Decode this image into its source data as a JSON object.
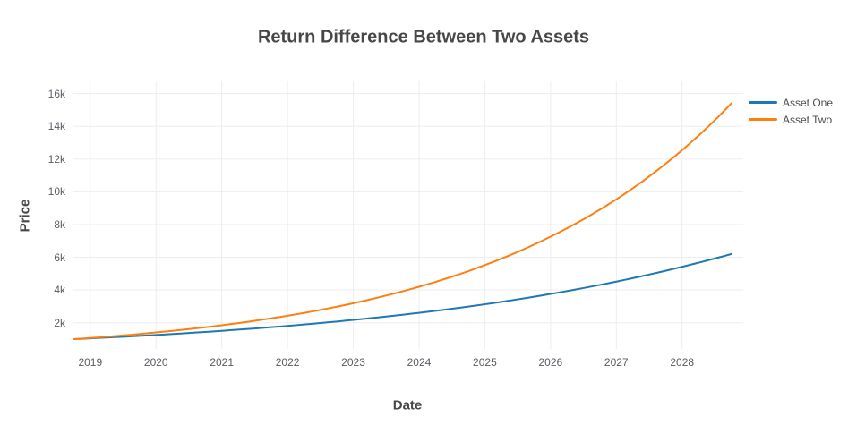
{
  "title": "Return Difference Between Two Assets",
  "colors": {
    "background": "#ffffff",
    "grid": "#ededed",
    "title_text": "#474747",
    "tick_text": "#595c61",
    "asset_one": "#1f77b4",
    "asset_two": "#ff7f0e"
  },
  "chart_data": {
    "type": "line",
    "title": "Return Difference Between Two Assets",
    "xlabel": "Date",
    "ylabel": "Price",
    "grid": true,
    "legend_position": "right-top",
    "xlim": [
      2018.73,
      2028.93
    ],
    "ylim": [
      400,
      16800
    ],
    "x_ticks": [
      2019,
      2020,
      2021,
      2022,
      2023,
      2024,
      2025,
      2026,
      2027,
      2028
    ],
    "y_ticks": [
      {
        "value": 2000,
        "label": "2k"
      },
      {
        "value": 4000,
        "label": "4k"
      },
      {
        "value": 6000,
        "label": "6k"
      },
      {
        "value": 8000,
        "label": "8k"
      },
      {
        "value": 10000,
        "label": "10k"
      },
      {
        "value": 12000,
        "label": "12k"
      },
      {
        "value": 14000,
        "label": "14k"
      },
      {
        "value": 16000,
        "label": "16k"
      }
    ],
    "x": [
      2018.75,
      2019,
      2020,
      2021,
      2022,
      2023,
      2024,
      2025,
      2026,
      2027,
      2028,
      2028.75
    ],
    "series": [
      {
        "name": "Asset One",
        "color": "#1f77b4",
        "values": [
          1000,
          1050,
          1255,
          1510,
          1810,
          2175,
          2610,
          3130,
          3760,
          4515,
          5420,
          6200
        ]
      },
      {
        "name": "Asset Two",
        "color": "#ff7f0e",
        "values": [
          1000,
          1070,
          1410,
          1850,
          2430,
          3195,
          4200,
          5520,
          7260,
          9540,
          12545,
          15400
        ]
      }
    ]
  }
}
